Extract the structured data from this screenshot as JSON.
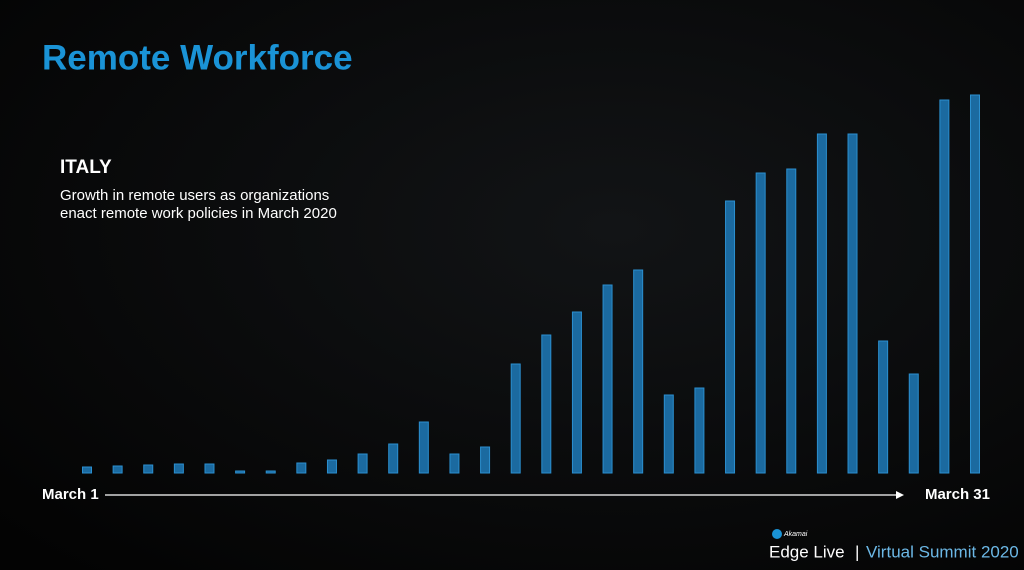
{
  "chart_data": {
    "type": "bar",
    "title": "Remote Workforce",
    "subtitle": "ITALY",
    "description": [
      "Growth in remote users as organizations",
      "enact remote work policies in March 2020"
    ],
    "start_label": "March 1",
    "end_label": "March 31",
    "values": [
      6,
      7,
      8,
      9,
      9,
      2,
      2,
      10,
      13,
      19,
      29,
      51,
      19,
      26,
      109,
      138,
      161,
      188,
      203,
      78,
      85,
      272,
      300,
      304,
      339,
      339,
      132,
      99,
      373,
      378
    ],
    "color": "#1b6aa0",
    "ylim": [
      0,
      400
    ]
  },
  "footer": {
    "logo": "Akamai",
    "event": "Edge Live",
    "separator": "|",
    "summit": "Virtual Summit 2020"
  }
}
